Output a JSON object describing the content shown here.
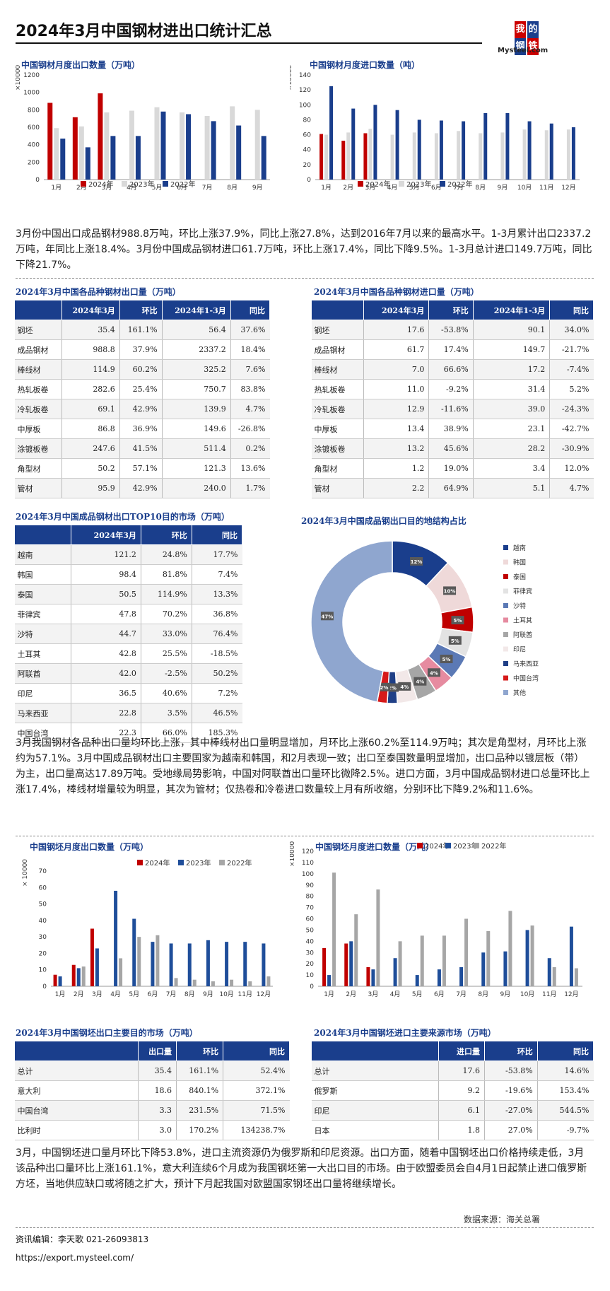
{
  "header": {
    "title": "2024年3月中国钢材进出口统计汇总",
    "logo_line1": "我的",
    "logo_line2": "钢铁",
    "logo_brand": "Mysteel.com"
  },
  "colors": {
    "red": "#c00000",
    "gray": "#d9d9d9",
    "navy": "#1a3e8c",
    "blue": "#1f4e9a",
    "dgray": "#a6a6a6"
  },
  "text": {
    "p1": "3月份中国出口成品钢材988.8万吨，环比上涨37.9%，同比上涨27.8%，达到2016年7月以来的最高水平。1-3月累计出口2337.2万吨，年同比上涨18.4%。3月份中国成品钢材进口61.7万吨，环比上涨17.4%，同比下降9.5%。1-3月总计进口149.7万吨，同比下降21.7%。",
    "p2": "3月我国钢材各品种出口量均环比上涨，其中棒线材出口量明显增加，月环比上涨60.2%至114.9万吨；其次是角型材，月环比上涨约为57.1%。3月中国成品钢材出口主要国家为越南和韩国，和2月表现一致；出口至泰国数量明显增加，出口品种以镀层板（带）为主，出口量高达17.89万吨。受地缘局势影响，中国对阿联酋出口量环比微降2.5%。进口方面，3月中国成品钢材进口总量环比上涨17.4%，棒线材增量较为明显，其次为管材；仅热卷和冷卷进口数量较上月有所收缩，分别环比下降9.2%和11.6%。",
    "p3": "3月，中国钢坯进口量月环比下降53.8%，进口主流资源仍为俄罗斯和印尼资源。出口方面，随着中国钢坯出口价格持续走低，3月该品种出口量环比上涨161.1%，意大利连续6个月成为我国钢坯第一大出口目的市场。由于欧盟委员会自4月1日起禁止进口俄罗斯方坯，当地供应缺口或将随之扩大，预计下月起我国对欧盟国家钢坯出口量将继续增长。",
    "source": "数据来源：海关总署",
    "editor": "资讯编辑：李天歌  021-26093813",
    "url": "https://export.mysteel.com/"
  },
  "chart_data": [
    {
      "id": "c1",
      "type": "bar",
      "title": "中国钢材月度出口数量（万吨）",
      "yunit": "×10000",
      "categories": [
        "1月",
        "2月",
        "3月",
        "4月",
        "5月",
        "6月",
        "7月",
        "8月",
        "9月"
      ],
      "ylim": [
        0,
        1200
      ],
      "yticks": [
        0,
        200,
        400,
        600,
        800,
        1000,
        1200
      ],
      "series": [
        {
          "name": "2024年",
          "values": [
            880,
            715,
            989,
            null,
            null,
            null,
            null,
            null,
            null
          ]
        },
        {
          "name": "2023年",
          "values": [
            590,
            610,
            770,
            790,
            830,
            770,
            730,
            840,
            800
          ]
        },
        {
          "name": "2022年",
          "values": [
            470,
            370,
            500,
            500,
            780,
            750,
            670,
            620,
            500
          ]
        }
      ]
    },
    {
      "id": "c2",
      "type": "bar",
      "title": "中国钢材月度进口数量（吨）",
      "yunit": "×10000",
      "categories": [
        "1月",
        "2月",
        "3月",
        "4月",
        "5月",
        "6月",
        "7月",
        "8月",
        "9月",
        "10月",
        "11月",
        "12月"
      ],
      "ylim": [
        0,
        140
      ],
      "yticks": [
        0,
        20,
        40,
        60,
        80,
        100,
        120,
        140
      ],
      "series": [
        {
          "name": "2024年",
          "values": [
            61,
            52,
            62,
            null,
            null,
            null,
            null,
            null,
            null,
            null,
            null,
            null
          ]
        },
        {
          "name": "2023年",
          "values": [
            60,
            63,
            68,
            60,
            63,
            62,
            65,
            62,
            63,
            67,
            66,
            67
          ]
        },
        {
          "name": "2022年",
          "values": [
            125,
            95,
            100,
            93,
            80,
            79,
            78,
            89,
            89,
            78,
            75,
            70
          ]
        }
      ]
    },
    {
      "id": "c3",
      "type": "donut",
      "title": "2024年3月中国成品钢出口目的地结构占比",
      "slices": [
        {
          "name": "越南",
          "value": 12,
          "label": "12%",
          "color": "#1a3e8c"
        },
        {
          "name": "韩国",
          "value": 10,
          "label": "10%",
          "color": "#efd9d9"
        },
        {
          "name": "泰国",
          "value": 5,
          "label": "5%",
          "color": "#c00000"
        },
        {
          "name": "菲律宾",
          "value": 5,
          "label": "5%",
          "color": "#e3e3e3"
        },
        {
          "name": "沙特",
          "value": 5,
          "label": "5%",
          "color": "#5b79b5"
        },
        {
          "name": "土耳其",
          "value": 4,
          "label": "4%",
          "color": "#e68ba0"
        },
        {
          "name": "阿联酋",
          "value": 4,
          "label": "4%",
          "color": "#a6a6a6"
        },
        {
          "name": "印尼",
          "value": 4,
          "label": "4%",
          "color": "#f2e8e8"
        },
        {
          "name": "马来西亚",
          "value": 2,
          "label": "2%",
          "color": "#1f3f86"
        },
        {
          "name": "中国台湾",
          "value": 2,
          "label": "2%",
          "color": "#d61a1a"
        },
        {
          "name": "其他",
          "value": 47,
          "label": "47%",
          "color": "#8fa6cf"
        }
      ]
    },
    {
      "id": "c4",
      "type": "bar",
      "title": "中国钢坯月度出口数量（万吨）",
      "yunit": "× 10000",
      "categories": [
        "1月",
        "2月",
        "3月",
        "4月",
        "5月",
        "6月",
        "7月",
        "8月",
        "9月",
        "10月",
        "11月",
        "12月"
      ],
      "ylim": [
        0,
        70
      ],
      "yticks": [
        0,
        10,
        20,
        30,
        40,
        50,
        60,
        70
      ],
      "series": [
        {
          "name": "2024年",
          "values": [
            7,
            13,
            35,
            null,
            null,
            null,
            null,
            null,
            null,
            null,
            null,
            null
          ]
        },
        {
          "name": "2023年",
          "values": [
            6,
            11,
            23,
            58,
            41,
            27,
            26,
            26,
            28,
            27,
            27,
            26
          ]
        },
        {
          "name": "2022年",
          "values": [
            0,
            12,
            0,
            17,
            30,
            31,
            5,
            4,
            3,
            4,
            3,
            6
          ]
        }
      ]
    },
    {
      "id": "c5",
      "type": "bar",
      "title": "中国钢坯月度进口数量（万吨）",
      "yunit": "×10000",
      "categories": [
        "1月",
        "2月",
        "3月",
        "4月",
        "5月",
        "6月",
        "7月",
        "8月",
        "9月",
        "10月",
        "11月",
        "12月"
      ],
      "ylim": [
        0,
        120
      ],
      "yticks": [
        0,
        10,
        20,
        30,
        40,
        50,
        60,
        70,
        80,
        90,
        100,
        110,
        120
      ],
      "series": [
        {
          "name": "2024年",
          "values": [
            34,
            38,
            17,
            null,
            null,
            null,
            null,
            null,
            null,
            null,
            null,
            null
          ]
        },
        {
          "name": "2023年",
          "values": [
            10,
            40,
            15,
            25,
            10,
            15,
            17,
            30,
            31,
            50,
            25,
            53
          ]
        },
        {
          "name": "2022年",
          "values": [
            101,
            64,
            86,
            40,
            45,
            45,
            60,
            49,
            67,
            54,
            17,
            16
          ]
        }
      ]
    }
  ],
  "tables": {
    "t1": {
      "title": "2024年3月中国各品种钢材出口量（万吨）",
      "head": [
        "",
        "2024年3月",
        "环比",
        "2024年1-3月",
        "同比"
      ],
      "rows": [
        [
          "钢坯",
          "35.4",
          "161.1%",
          "56.4",
          "37.6%"
        ],
        [
          "成品钢材",
          "988.8",
          "37.9%",
          "2337.2",
          "18.4%"
        ],
        [
          "棒线材",
          "114.9",
          "60.2%",
          "325.2",
          "7.6%"
        ],
        [
          "热轧板卷",
          "282.6",
          "25.4%",
          "750.7",
          "83.8%"
        ],
        [
          "冷轧板卷",
          "69.1",
          "42.9%",
          "139.9",
          "4.7%"
        ],
        [
          "中厚板",
          "86.8",
          "36.9%",
          "149.6",
          "-26.8%"
        ],
        [
          "涂镀板卷",
          "247.6",
          "41.5%",
          "511.4",
          "0.2%"
        ],
        [
          "角型材",
          "50.2",
          "57.1%",
          "121.3",
          "13.6%"
        ],
        [
          "管材",
          "95.9",
          "42.9%",
          "240.0",
          "1.7%"
        ]
      ]
    },
    "t2": {
      "title": "2024年3月中国各品种钢材进口量（万吨）",
      "head": [
        "",
        "2024年3月",
        "环比",
        "2024年1-3月",
        "同比"
      ],
      "rows": [
        [
          "钢坯",
          "17.6",
          "-53.8%",
          "90.1",
          "34.0%"
        ],
        [
          "成品钢材",
          "61.7",
          "17.4%",
          "149.7",
          "-21.7%"
        ],
        [
          "棒线材",
          "7.0",
          "66.6%",
          "17.2",
          "-7.4%"
        ],
        [
          "热轧板卷",
          "11.0",
          "-9.2%",
          "31.4",
          "5.2%"
        ],
        [
          "冷轧板卷",
          "12.9",
          "-11.6%",
          "39.0",
          "-24.3%"
        ],
        [
          "中厚板",
          "13.4",
          "38.9%",
          "23.1",
          "-42.7%"
        ],
        [
          "涂镀板卷",
          "13.2",
          "45.6%",
          "28.2",
          "-30.9%"
        ],
        [
          "角型材",
          "1.2",
          "19.0%",
          "3.4",
          "12.0%"
        ],
        [
          "管材",
          "2.2",
          "64.9%",
          "5.1",
          "4.7%"
        ]
      ]
    },
    "t3": {
      "title": "2024年3月中国成品钢材出口TOP10目的市场（万吨）",
      "head": [
        "",
        "2024年3月",
        "环比",
        "同比"
      ],
      "rows": [
        [
          "越南",
          "121.2",
          "24.8%",
          "17.7%"
        ],
        [
          "韩国",
          "98.4",
          "81.8%",
          "7.4%"
        ],
        [
          "泰国",
          "50.5",
          "114.9%",
          "13.3%"
        ],
        [
          "菲律宾",
          "47.8",
          "70.2%",
          "36.8%"
        ],
        [
          "沙特",
          "44.7",
          "33.0%",
          "76.4%"
        ],
        [
          "土耳其",
          "42.8",
          "25.5%",
          "-18.5%"
        ],
        [
          "阿联酋",
          "42.0",
          "-2.5%",
          "50.2%"
        ],
        [
          "印尼",
          "36.5",
          "40.6%",
          "7.2%"
        ],
        [
          "马来西亚",
          "22.8",
          "3.5%",
          "46.5%"
        ],
        [
          "中国台湾",
          "22.3",
          "66.0%",
          "185.3%"
        ]
      ]
    },
    "t4": {
      "title": "2024年3月中国钢坯出口主要目的市场（万吨）",
      "head": [
        "",
        "出口量",
        "环比",
        "同比"
      ],
      "rows": [
        [
          "总计",
          "35.4",
          "161.1%",
          "52.4%"
        ],
        [
          "意大利",
          "18.6",
          "840.1%",
          "372.1%"
        ],
        [
          "中国台湾",
          "3.3",
          "231.5%",
          "71.5%"
        ],
        [
          "比利时",
          "3.0",
          "170.2%",
          "134238.7%"
        ]
      ]
    },
    "t5": {
      "title": "2024年3月中国钢坯进口主要来源市场（万吨）",
      "head": [
        "",
        "进口量",
        "环比",
        "同比"
      ],
      "rows": [
        [
          "总计",
          "17.6",
          "-53.8%",
          "14.6%"
        ],
        [
          "俄罗斯",
          "9.2",
          "-19.6%",
          "153.4%"
        ],
        [
          "印尼",
          "6.1",
          "-27.0%",
          "544.5%"
        ],
        [
          "日本",
          "1.8",
          "27.0%",
          "-9.7%"
        ]
      ]
    }
  }
}
